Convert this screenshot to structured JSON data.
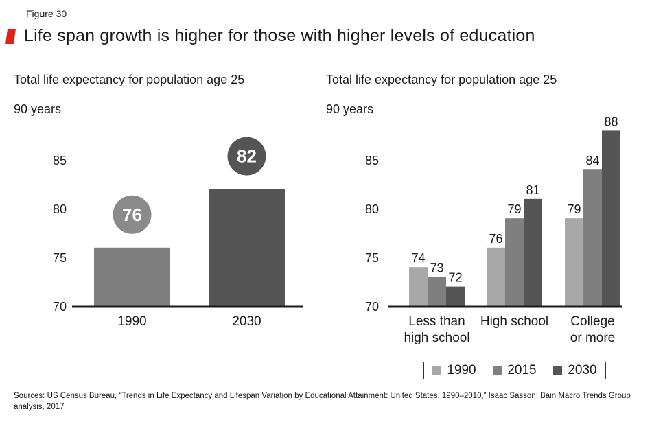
{
  "figure_label": "Figure 30",
  "title": "Life span growth is higher for those with higher levels of education",
  "colors": {
    "accent": "#e0211c",
    "c1990": "#a8a8a8",
    "c2015": "#7f7f7f",
    "c2030": "#555555",
    "bubble1990": "#8a8a8a",
    "bubble2030": "#555555"
  },
  "legend": {
    "items": [
      "1990",
      "2015",
      "2030"
    ]
  },
  "sources": "Sources: US Census Bureau, “Trends in Life Expectancy and Lifespan Variation by Educational Attainment: United States, 1990–2010,” Isaac Sasson; Bain Macro Trends Group analysis, 2017",
  "chart_data": [
    {
      "type": "bar",
      "title": "Total life expectancy for population age 25",
      "unit_label": "90 years",
      "categories": [
        "1990",
        "2030"
      ],
      "values": [
        76,
        82
      ],
      "ylim": [
        70,
        90
      ],
      "yticks": [
        "70",
        "75",
        "80",
        "85"
      ]
    },
    {
      "type": "bar",
      "title": "Total life expectancy for population age 25",
      "unit_label": "90 years",
      "categories": [
        "Less than\nhigh school",
        "High school",
        "College\nor more"
      ],
      "series": [
        {
          "name": "1990",
          "values": [
            74,
            76,
            79
          ]
        },
        {
          "name": "2015",
          "values": [
            73,
            79,
            84
          ]
        },
        {
          "name": "2030",
          "values": [
            72,
            81,
            88
          ]
        }
      ],
      "ylim": [
        70,
        90
      ],
      "yticks": [
        "70",
        "75",
        "80",
        "85"
      ]
    }
  ]
}
